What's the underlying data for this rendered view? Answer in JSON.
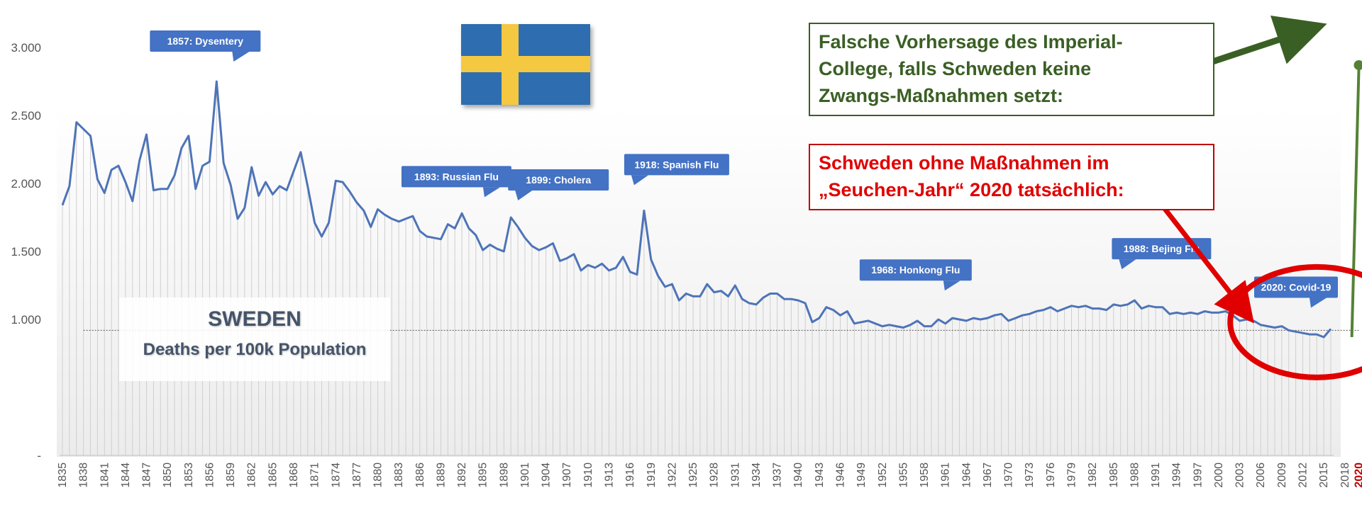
{
  "chart_data": {
    "type": "line",
    "title": "SWEDEN",
    "subtitle": "Deaths per 100k Population",
    "ylim": [
      0,
      3000
    ],
    "y_ticks": [
      {
        "value": 0,
        "label": "-"
      },
      {
        "value": 1000,
        "label": "1.000"
      },
      {
        "value": 1500,
        "label": "1.500"
      },
      {
        "value": 2000,
        "label": "2.000"
      },
      {
        "value": 2500,
        "label": "2.500"
      },
      {
        "value": 3000,
        "label": "3.000"
      }
    ],
    "x_tick_labels": [
      "1835",
      "1838",
      "1841",
      "1844",
      "1847",
      "1850",
      "1853",
      "1856",
      "1859",
      "1862",
      "1865",
      "1868",
      "1871",
      "1874",
      "1877",
      "1880",
      "1883",
      "1886",
      "1889",
      "1892",
      "1895",
      "1898",
      "1901",
      "1904",
      "1907",
      "1910",
      "1913",
      "1916",
      "1919",
      "1922",
      "1925",
      "1928",
      "1931",
      "1934",
      "1937",
      "1940",
      "1943",
      "1946",
      "1949",
      "1952",
      "1955",
      "1958",
      "1961",
      "1964",
      "1967",
      "1970",
      "1973",
      "1976",
      "1979",
      "1982",
      "1985",
      "1988",
      "1991",
      "1994",
      "1997",
      "2000",
      "2003",
      "2006",
      "2009",
      "2012",
      "2015",
      "2018",
      "2020"
    ],
    "x_tick_highlight": "2020",
    "x_start": 1835,
    "series": [
      {
        "color": "#4e74b8",
        "values": [
          1840,
          1980,
          2450,
          2400,
          2350,
          2030,
          1930,
          2100,
          2130,
          2010,
          1870,
          2170,
          2360,
          1950,
          1960,
          1960,
          2060,
          2260,
          2350,
          1960,
          2130,
          2160,
          2750,
          2150,
          1990,
          1740,
          1820,
          2120,
          1910,
          2010,
          1920,
          1980,
          1950,
          2090,
          2230,
          1980,
          1710,
          1610,
          1710,
          2020,
          2010,
          1940,
          1860,
          1800,
          1680,
          1810,
          1770,
          1740,
          1720,
          1740,
          1760,
          1650,
          1610,
          1600,
          1590,
          1700,
          1670,
          1780,
          1670,
          1620,
          1510,
          1550,
          1520,
          1500,
          1750,
          1680,
          1600,
          1540,
          1510,
          1530,
          1560,
          1430,
          1450,
          1480,
          1360,
          1400,
          1380,
          1410,
          1360,
          1380,
          1460,
          1350,
          1330,
          1800,
          1440,
          1320,
          1240,
          1260,
          1140,
          1190,
          1170,
          1170,
          1260,
          1200,
          1210,
          1170,
          1250,
          1150,
          1120,
          1110,
          1160,
          1190,
          1190,
          1150,
          1150,
          1140,
          1120,
          980,
          1010,
          1090,
          1070,
          1030,
          1060,
          970,
          980,
          990,
          970,
          950,
          960,
          950,
          940,
          960,
          990,
          950,
          950,
          1000,
          970,
          1010,
          1000,
          990,
          1010,
          1000,
          1010,
          1030,
          1040,
          990,
          1010,
          1030,
          1040,
          1060,
          1070,
          1090,
          1060,
          1080,
          1100,
          1090,
          1100,
          1080,
          1080,
          1070,
          1110,
          1100,
          1110,
          1140,
          1080,
          1100,
          1090,
          1090,
          1040,
          1050,
          1040,
          1050,
          1040,
          1060,
          1050,
          1050,
          1060,
          1030,
          990,
          1000,
          990,
          960,
          950,
          940,
          950,
          920,
          910,
          900,
          890,
          890,
          870,
          930
        ]
      }
    ],
    "forecast": {
      "color": "#548235",
      "from_year": 2019,
      "from_value": 870,
      "to_year": 2020,
      "to_value": 2870
    },
    "reference_line": {
      "value": 920,
      "style": "dotted"
    },
    "callouts": [
      {
        "text": "1857: Dysentery",
        "year": 1857
      },
      {
        "text": "1893: Russian Flu",
        "year": 1893
      },
      {
        "text": "1899: Cholera",
        "year": 1899
      },
      {
        "text": "1918: Spanish Flu",
        "year": 1918
      },
      {
        "text": "1968: Honkong Flu",
        "year": 1968
      },
      {
        "text": "1988: Bejing Flu",
        "year": 1988
      },
      {
        "text": "2020: Covid-19",
        "year": 2020
      }
    ],
    "callout_color": "#4472c4",
    "highlight_circle_color": "#e00000"
  },
  "annotations": {
    "forecast_note": [
      "Falsche Vorhersage des Imperial-",
      "College, falls Schweden keine",
      "Zwangs-Maßnahmen setzt:"
    ],
    "actual_note": [
      "Schweden ohne Maßnahmen im",
      "„Seuchen-Jahr“ 2020 tatsächlich:"
    ],
    "forecast_arrow_color": "#3a5f24",
    "actual_arrow_color": "#e00000"
  },
  "flag": {
    "name": "sweden-flag",
    "blue": "#2e6eb0",
    "yellow": "#f5c842"
  }
}
